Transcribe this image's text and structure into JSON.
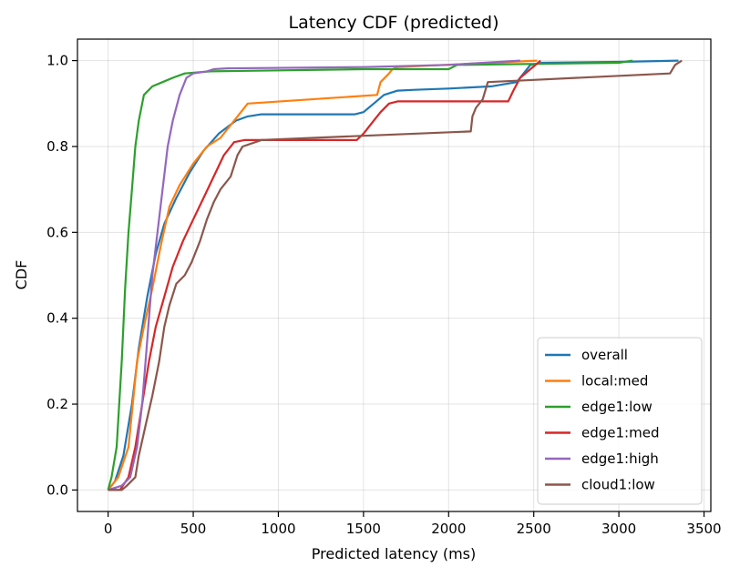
{
  "chart_data": {
    "type": "line",
    "title": "Latency CDF (predicted)",
    "xlabel": "Predicted latency (ms)",
    "ylabel": "CDF",
    "xlim": [
      -180,
      3540
    ],
    "ylim": [
      -0.05,
      1.05
    ],
    "xticks": [
      0,
      500,
      1000,
      1500,
      2000,
      2500,
      3000,
      3500
    ],
    "yticks": [
      0.0,
      0.2,
      0.4,
      0.6,
      0.8,
      1.0
    ],
    "xtick_labels": [
      "0",
      "500",
      "1000",
      "1500",
      "2000",
      "2500",
      "3000",
      "3500"
    ],
    "ytick_labels": [
      "0.0",
      "0.2",
      "0.4",
      "0.6",
      "0.8",
      "1.0"
    ],
    "grid": true,
    "legend_position": "lower-right",
    "series": [
      {
        "name": "overall",
        "color": "#1f77b4",
        "points": [
          [
            0,
            0
          ],
          [
            40,
            0.02
          ],
          [
            90,
            0.08
          ],
          [
            140,
            0.2
          ],
          [
            180,
            0.33
          ],
          [
            230,
            0.45
          ],
          [
            280,
            0.55
          ],
          [
            330,
            0.62
          ],
          [
            400,
            0.68
          ],
          [
            480,
            0.74
          ],
          [
            560,
            0.79
          ],
          [
            650,
            0.83
          ],
          [
            750,
            0.86
          ],
          [
            820,
            0.87
          ],
          [
            900,
            0.875
          ],
          [
            1450,
            0.875
          ],
          [
            1500,
            0.88
          ],
          [
            1560,
            0.9
          ],
          [
            1620,
            0.92
          ],
          [
            1700,
            0.93
          ],
          [
            1800,
            0.932
          ],
          [
            2000,
            0.935
          ],
          [
            2250,
            0.94
          ],
          [
            2400,
            0.95
          ],
          [
            2480,
            0.99
          ],
          [
            2550,
            0.995
          ],
          [
            3000,
            0.997
          ],
          [
            3350,
            1.0
          ]
        ]
      },
      {
        "name": "local:med",
        "color": "#ff7f0e",
        "points": [
          [
            0,
            0
          ],
          [
            60,
            0.03
          ],
          [
            120,
            0.1
          ],
          [
            170,
            0.3
          ],
          [
            210,
            0.38
          ],
          [
            260,
            0.47
          ],
          [
            310,
            0.57
          ],
          [
            360,
            0.66
          ],
          [
            420,
            0.71
          ],
          [
            500,
            0.76
          ],
          [
            580,
            0.8
          ],
          [
            660,
            0.82
          ],
          [
            720,
            0.85
          ],
          [
            760,
            0.87
          ],
          [
            820,
            0.9
          ],
          [
            1580,
            0.92
          ],
          [
            1600,
            0.95
          ],
          [
            1650,
            0.97
          ],
          [
            1670,
            0.98
          ],
          [
            1700,
            0.985
          ],
          [
            2520,
            1.0
          ]
        ]
      },
      {
        "name": "edge1:low",
        "color": "#2ca02c",
        "points": [
          [
            0,
            0
          ],
          [
            20,
            0.03
          ],
          [
            50,
            0.1
          ],
          [
            80,
            0.3
          ],
          [
            100,
            0.47
          ],
          [
            120,
            0.6
          ],
          [
            140,
            0.7
          ],
          [
            160,
            0.8
          ],
          [
            180,
            0.86
          ],
          [
            210,
            0.92
          ],
          [
            260,
            0.94
          ],
          [
            320,
            0.95
          ],
          [
            380,
            0.96
          ],
          [
            450,
            0.97
          ],
          [
            600,
            0.975
          ],
          [
            1500,
            0.98
          ],
          [
            2000,
            0.98
          ],
          [
            2050,
            0.99
          ],
          [
            3000,
            0.995
          ],
          [
            3080,
            1.0
          ]
        ]
      },
      {
        "name": "edge1:med",
        "color": "#d62728",
        "points": [
          [
            0,
            0
          ],
          [
            70,
            0.0
          ],
          [
            120,
            0.03
          ],
          [
            160,
            0.1
          ],
          [
            200,
            0.2
          ],
          [
            240,
            0.3
          ],
          [
            280,
            0.38
          ],
          [
            330,
            0.45
          ],
          [
            380,
            0.52
          ],
          [
            440,
            0.58
          ],
          [
            500,
            0.63
          ],
          [
            560,
            0.68
          ],
          [
            620,
            0.73
          ],
          [
            680,
            0.78
          ],
          [
            740,
            0.81
          ],
          [
            800,
            0.815
          ],
          [
            1460,
            0.815
          ],
          [
            1500,
            0.83
          ],
          [
            1560,
            0.86
          ],
          [
            1600,
            0.88
          ],
          [
            1650,
            0.9
          ],
          [
            1700,
            0.905
          ],
          [
            2350,
            0.905
          ],
          [
            2380,
            0.93
          ],
          [
            2420,
            0.96
          ],
          [
            2480,
            0.98
          ],
          [
            2540,
            1.0
          ]
        ]
      },
      {
        "name": "edge1:high",
        "color": "#9467bd",
        "points": [
          [
            0,
            0
          ],
          [
            80,
            0.01
          ],
          [
            130,
            0.03
          ],
          [
            170,
            0.1
          ],
          [
            200,
            0.2
          ],
          [
            230,
            0.35
          ],
          [
            260,
            0.5
          ],
          [
            290,
            0.6
          ],
          [
            320,
            0.7
          ],
          [
            350,
            0.8
          ],
          [
            380,
            0.86
          ],
          [
            420,
            0.92
          ],
          [
            460,
            0.96
          ],
          [
            500,
            0.97
          ],
          [
            580,
            0.975
          ],
          [
            620,
            0.98
          ],
          [
            700,
            0.982
          ],
          [
            1500,
            0.985
          ],
          [
            2000,
            0.99
          ],
          [
            2420,
            1.0
          ]
        ]
      },
      {
        "name": "cloud1:low",
        "color": "#8c564b",
        "points": [
          [
            0,
            0
          ],
          [
            80,
            0.0
          ],
          [
            110,
            0.01
          ],
          [
            160,
            0.03
          ],
          [
            180,
            0.08
          ],
          [
            220,
            0.15
          ],
          [
            260,
            0.22
          ],
          [
            300,
            0.3
          ],
          [
            330,
            0.38
          ],
          [
            360,
            0.43
          ],
          [
            400,
            0.48
          ],
          [
            450,
            0.5
          ],
          [
            490,
            0.53
          ],
          [
            540,
            0.58
          ],
          [
            580,
            0.63
          ],
          [
            620,
            0.67
          ],
          [
            660,
            0.7
          ],
          [
            720,
            0.73
          ],
          [
            760,
            0.78
          ],
          [
            790,
            0.8
          ],
          [
            900,
            0.815
          ],
          [
            1500,
            0.825
          ],
          [
            2130,
            0.835
          ],
          [
            2140,
            0.87
          ],
          [
            2160,
            0.89
          ],
          [
            2200,
            0.91
          ],
          [
            2230,
            0.95
          ],
          [
            2500,
            0.955
          ],
          [
            3300,
            0.97
          ],
          [
            3330,
            0.99
          ],
          [
            3370,
            1.0
          ]
        ]
      }
    ]
  }
}
